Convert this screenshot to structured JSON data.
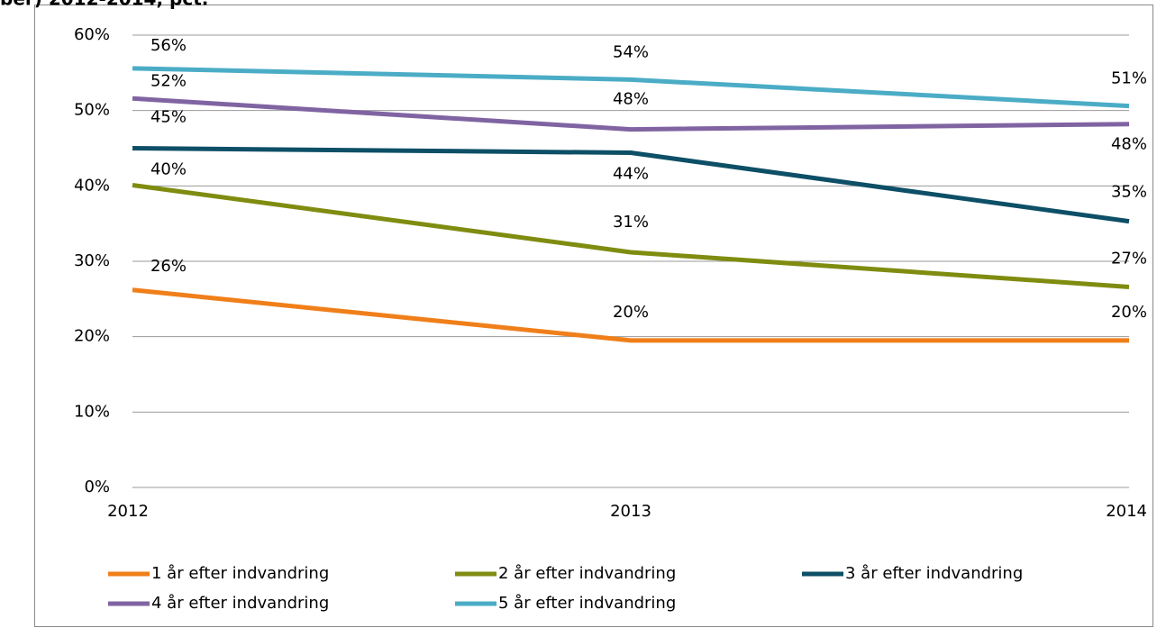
{
  "chart_data": {
    "type": "line",
    "title": "ber) 2012-2014, pct.",
    "categories": [
      "2012",
      "2013",
      "2014"
    ],
    "series": [
      {
        "name": "1 år efter indvandring",
        "color": "#f07f1a",
        "values": [
          26.2,
          19.5,
          19.5
        ],
        "value_labels": [
          "26%",
          "20%",
          "20%"
        ]
      },
      {
        "name": "2 år efter indvandring",
        "color": "#7f8c10",
        "values": [
          40.1,
          31.2,
          26.6
        ],
        "value_labels": [
          "40%",
          "31%",
          "27%"
        ]
      },
      {
        "name": "3 år efter indvandring",
        "color": "#0d4f66",
        "values": [
          45.0,
          44.4,
          35.3
        ],
        "value_labels": [
          "45%",
          "44%",
          "35%"
        ]
      },
      {
        "name": "4 år efter indvandring",
        "color": "#8064a2",
        "values": [
          51.6,
          47.5,
          48.2
        ],
        "value_labels": [
          "52%",
          "48%",
          "48%"
        ]
      },
      {
        "name": "5 år efter indvandring",
        "color": "#4bacc6",
        "values": [
          55.6,
          54.1,
          50.6
        ],
        "value_labels": [
          "56%",
          "54%",
          "51%"
        ]
      }
    ],
    "ylim": [
      0,
      60
    ],
    "yticks": [
      {
        "value": 0,
        "label": "0%"
      },
      {
        "value": 10,
        "label": "10%"
      },
      {
        "value": 20,
        "label": "20%"
      },
      {
        "value": 30,
        "label": "30%"
      },
      {
        "value": 40,
        "label": "40%"
      },
      {
        "value": 50,
        "label": "50%"
      },
      {
        "value": 60,
        "label": "60%"
      }
    ],
    "grid": true
  }
}
